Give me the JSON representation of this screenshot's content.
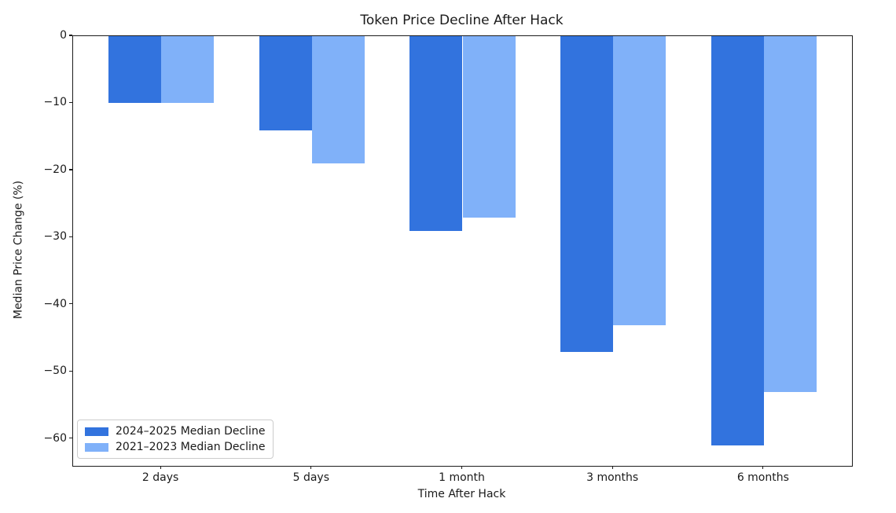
{
  "chart_data": {
    "type": "bar",
    "title": "Token Price Decline After Hack",
    "xlabel": "Time After Hack",
    "ylabel": "Median Price Change (%)",
    "categories": [
      "2 days",
      "5 days",
      "1 month",
      "3 months",
      "6 months"
    ],
    "series": [
      {
        "name": "2024–2025 Median Decline",
        "color": "#3273de",
        "values": [
          -10,
          -14,
          -29,
          -47,
          -61
        ]
      },
      {
        "name": "2021–2023 Median Decline",
        "color": "#80b1f9",
        "values": [
          -10,
          -19,
          -27,
          -43,
          -53
        ]
      }
    ],
    "yticks": [
      0,
      -10,
      -20,
      -30,
      -40,
      -50,
      -60
    ],
    "ytick_labels": [
      "0",
      "−10",
      "−20",
      "−30",
      "−40",
      "−50",
      "−60"
    ],
    "ylim": [
      -64,
      0
    ],
    "xlim": [
      -0.585,
      4.585
    ],
    "bar_width": 0.35,
    "grid": false,
    "legend_position": "lower left",
    "spine_color": "#1c1c1c",
    "background_color": "#ffffff"
  }
}
